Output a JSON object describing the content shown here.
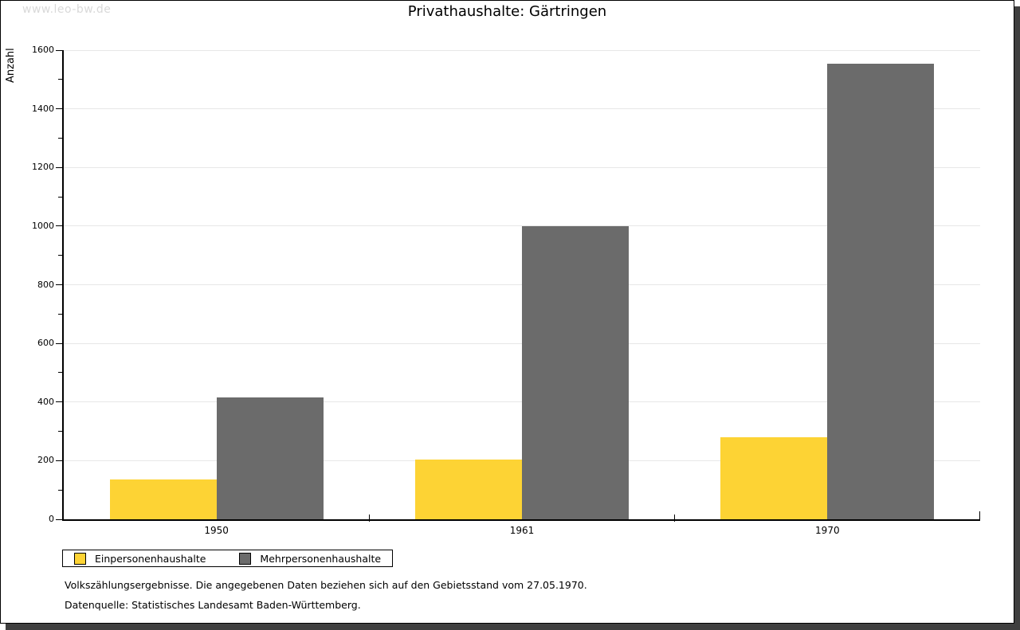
{
  "watermark": "www.leo-bw.de",
  "title": "Privathaushalte: Gärtringen",
  "chart_data": {
    "type": "bar",
    "title": "Privathaushalte: Gärtringen",
    "xlabel": "",
    "ylabel": "Anzahl",
    "categories": [
      "1950",
      "1961",
      "1970"
    ],
    "series": [
      {
        "name": "Einpersonenhaushalte",
        "color": "#FDD334",
        "values": [
          135,
          205,
          280
        ]
      },
      {
        "name": "Mehrpersonenhaushalte",
        "color": "#6B6B6B",
        "values": [
          415,
          1000,
          1555
        ]
      }
    ],
    "ylim": [
      0,
      1600
    ],
    "y_major_step": 200,
    "y_minor_step": 100,
    "grid": true,
    "legend_position": "bottom-left"
  },
  "footnotes": [
    "Volkszählungsergebnisse. Die angegebenen Daten beziehen sich auf den Gebietsstand vom 27.05.1970.",
    "Datenquelle: Statistisches Landesamt Baden-Württemberg."
  ],
  "colors": {
    "bar_yellow": "#FDD334",
    "bar_gray": "#6B6B6B",
    "gridline": "#e7e7e7",
    "axis": "#000000",
    "watermark": "#d9d9d9",
    "frame_shadow": "#3f3f3f"
  }
}
